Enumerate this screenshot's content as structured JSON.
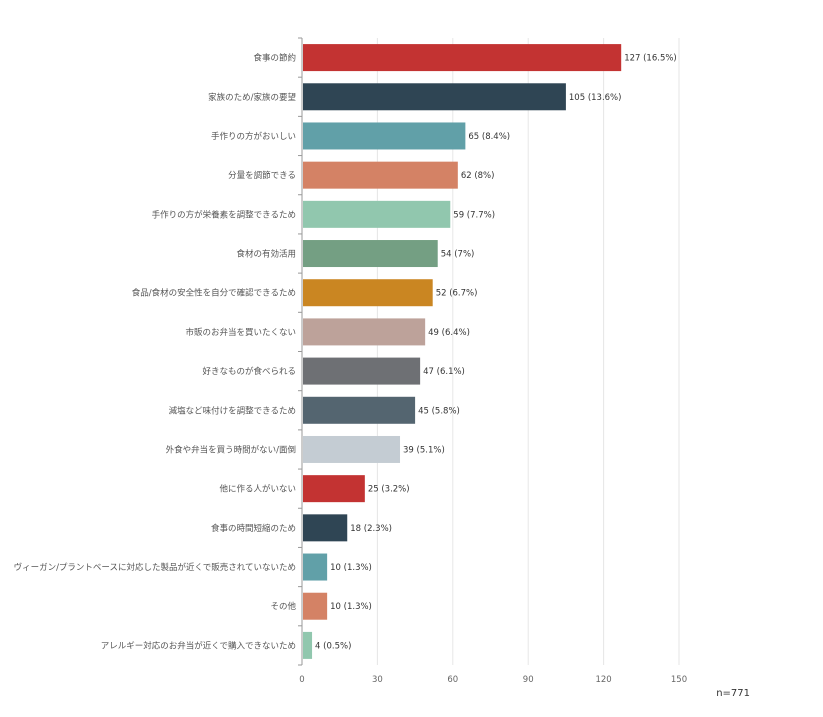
{
  "chart_data": {
    "type": "bar",
    "orientation": "horizontal",
    "categories": [
      "食事の節約",
      "家族のため/家族の要望",
      "手作りの方がおいしい",
      "分量を調節できる",
      "手作りの方が栄養素を調整できるため",
      "食材の有効活用",
      "食品/食材の安全性を自分で確認できるため",
      "市販のお弁当を買いたくない",
      "好きなものが食べられる",
      "減塩など味付けを調整できるため",
      "外食や弁当を買う時間がない/面倒",
      "他に作る人がいない",
      "食事の時間短縮のため",
      "ヴィーガン/プラントベースに対応した製品が近くで販売されていないため",
      "その他",
      "アレルギー対応のお弁当が近くで購入できないため"
    ],
    "values": [
      127,
      105,
      65,
      62,
      59,
      54,
      52,
      49,
      47,
      45,
      39,
      25,
      18,
      10,
      10,
      4
    ],
    "data_labels": [
      "127 (16.5%)",
      "105 (13.6%)",
      "65 (8.4%)",
      "62 (8%)",
      "59 (7.7%)",
      "54 (7%)",
      "52 (6.7%)",
      "49 (6.4%)",
      "47 (6.1%)",
      "45 (5.8%)",
      "39 (5.1%)",
      "25 (3.2%)",
      "18 (2.3%)",
      "10 (1.3%)",
      "10 (1.3%)",
      "4 (0.5%)"
    ],
    "colors": [
      "#c33332",
      "#2f4554",
      "#61a0a8",
      "#d48265",
      "#91c7ae",
      "#749f83",
      "#ca8622",
      "#bda29a",
      "#6e7074",
      "#546570",
      "#c4ccd3",
      "#c33332",
      "#2f4554",
      "#61a0a8",
      "#d48265",
      "#91c7ae"
    ],
    "xlim": [
      0,
      150
    ],
    "xticks": [
      0,
      30,
      60,
      90,
      120,
      150
    ],
    "grid": true,
    "title": "",
    "xlabel": "",
    "ylabel": "",
    "note": "n=771"
  }
}
